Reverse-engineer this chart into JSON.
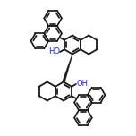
{
  "bg_color": "#ffffff",
  "line_color": "#1a1a1a",
  "oh_color": "#2222cc",
  "bond_lw": 1.3,
  "figsize": [
    1.52,
    1.52
  ],
  "dpi": 100,
  "xlim": [
    -0.76,
    0.76
  ],
  "ylim": [
    -0.76,
    0.76
  ],
  "oh_fontsize": 6.0,
  "r_main": 0.105,
  "r_ph": 0.098,
  "dbs": 0.022
}
